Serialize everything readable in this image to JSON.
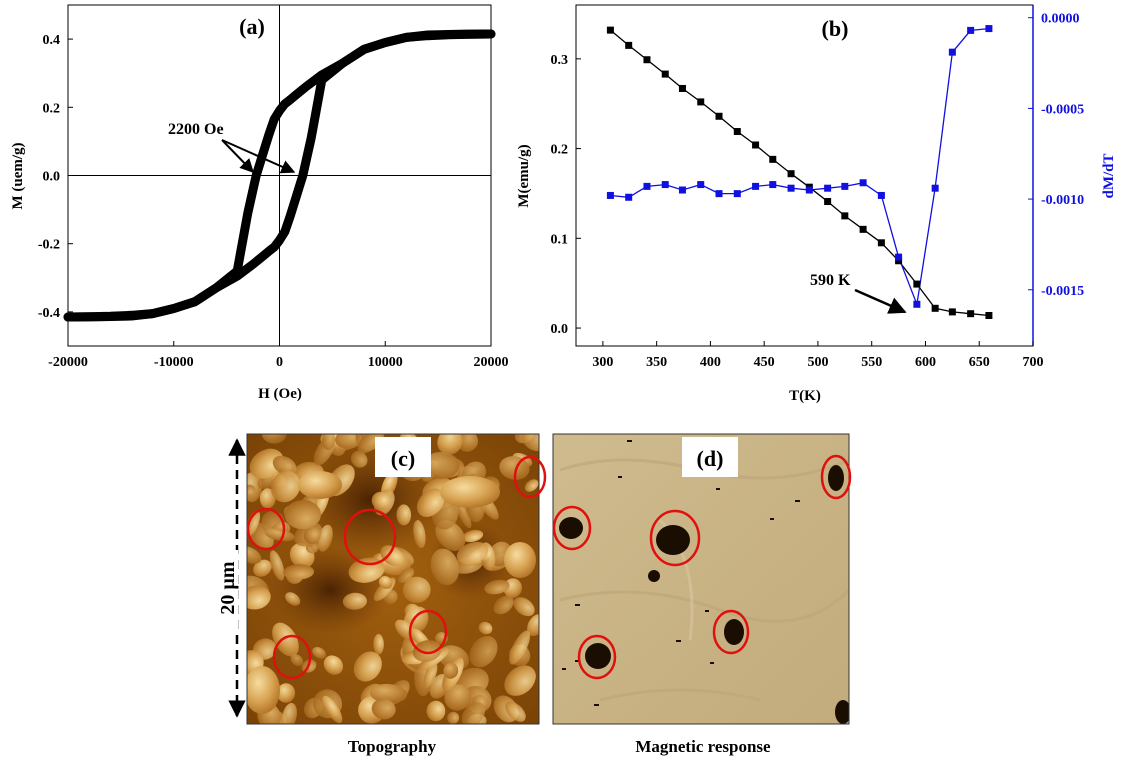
{
  "chart_data": [
    {
      "panel": "a",
      "type": "line",
      "title": "(a)",
      "xlabel": "H (Oe)",
      "ylabel": "M (uem/g)",
      "xlim": [
        -20000,
        20000
      ],
      "ylim": [
        -0.5,
        0.5
      ],
      "xticks": [
        "-20000",
        "-10000",
        "0",
        "10000",
        "20000"
      ],
      "yticks": [
        "-0.4",
        "-0.2",
        "0.0",
        "0.2",
        "0.4"
      ],
      "annotation": "2200 Oe",
      "series": [
        {
          "branch": "descending",
          "x": [
            20000,
            17000,
            14000,
            12000,
            10000,
            8000,
            6000,
            4000,
            2500,
            1500,
            1000,
            500,
            0,
            -500,
            -1000,
            -1500,
            -2200,
            -3000,
            -4000,
            -6000,
            -8000,
            -10000,
            -12000,
            -14000,
            -16000,
            -18000,
            -20000
          ],
          "y": [
            0.415,
            0.414,
            0.412,
            0.405,
            0.39,
            0.37,
            0.33,
            0.295,
            0.26,
            0.235,
            0.222,
            0.21,
            0.19,
            0.165,
            0.12,
            0.07,
            0.0,
            -0.11,
            -0.28,
            -0.33,
            -0.37,
            -0.39,
            -0.405,
            -0.41,
            -0.413,
            -0.414,
            -0.415
          ]
        },
        {
          "branch": "ascending",
          "x": [
            -20000,
            -17000,
            -14000,
            -12000,
            -10000,
            -8000,
            -6000,
            -4000,
            -2500,
            -1500,
            -1000,
            -500,
            0,
            500,
            1000,
            1500,
            2200,
            3000,
            4000,
            6000,
            8000,
            10000,
            12000,
            14000,
            16000,
            18000,
            20000
          ],
          "y": [
            -0.415,
            -0.414,
            -0.412,
            -0.405,
            -0.39,
            -0.37,
            -0.33,
            -0.295,
            -0.26,
            -0.235,
            -0.222,
            -0.21,
            -0.19,
            -0.165,
            -0.12,
            -0.07,
            0.0,
            0.11,
            0.28,
            0.33,
            0.37,
            0.39,
            0.405,
            0.41,
            0.413,
            0.414,
            0.415
          ]
        }
      ]
    },
    {
      "panel": "b",
      "type": "line",
      "title": "(b)",
      "xlabel": "T(K)",
      "ylabel": "M(emu/g)",
      "y2label": "dM/dT",
      "xlim": [
        275,
        700
      ],
      "ylim": [
        -0.02,
        0.36
      ],
      "y2lim": [
        -0.00181,
        7e-05
      ],
      "xticks": [
        "300",
        "350",
        "400",
        "450",
        "500",
        "550",
        "600",
        "650",
        "700"
      ],
      "yticks": [
        "0.0",
        "0.1",
        "0.2",
        "0.3"
      ],
      "y2ticks": [
        "0.0000",
        "-0.0005",
        "-0.0010",
        "-0.0015"
      ],
      "annotation": "590 K",
      "colors": {
        "M": "#000000",
        "dMdT": "#1010e0"
      },
      "x": [
        307,
        324,
        341,
        358,
        374,
        391,
        408,
        425,
        442,
        458,
        475,
        492,
        509,
        525,
        542,
        559,
        575,
        592,
        609,
        625,
        642,
        659
      ],
      "M": [
        0.332,
        0.315,
        0.299,
        0.283,
        0.267,
        0.252,
        0.236,
        0.219,
        0.204,
        0.188,
        0.172,
        0.157,
        0.141,
        0.125,
        0.11,
        0.095,
        0.075,
        0.049,
        0.022,
        0.018,
        0.016,
        0.014
      ],
      "dMdT": [
        -0.00098,
        -0.00099,
        -0.00093,
        -0.00092,
        -0.00095,
        -0.00092,
        -0.00097,
        -0.00097,
        -0.00093,
        -0.00092,
        -0.00094,
        -0.00095,
        -0.00094,
        -0.00093,
        -0.00091,
        -0.00098,
        -0.00132,
        -0.00158,
        -0.00094,
        -0.00019,
        -7e-05,
        -6e-05
      ]
    }
  ],
  "images": {
    "c": {
      "label": "(c)",
      "caption": "Topography",
      "scale_label": "20 µm"
    },
    "d": {
      "label": "(d)",
      "caption": "Magnetic response"
    }
  }
}
